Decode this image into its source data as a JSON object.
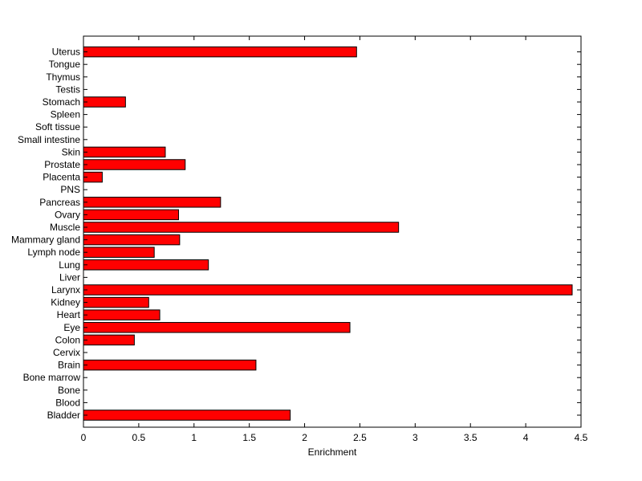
{
  "chart_data": {
    "type": "bar",
    "orientation": "horizontal",
    "title": "",
    "xlabel": "Enrichment",
    "ylabel": "",
    "xlim": [
      0,
      4.5
    ],
    "x_ticks": [
      "0",
      "0.5",
      "1",
      "1.5",
      "2",
      "2.5",
      "3",
      "3.5",
      "4",
      "4.5"
    ],
    "grid": false,
    "bar_color": "#ff0000",
    "categories": [
      "Bladder",
      "Blood",
      "Bone",
      "Bone marrow",
      "Brain",
      "Cervix",
      "Colon",
      "Eye",
      "Heart",
      "Kidney",
      "Larynx",
      "Liver",
      "Lung",
      "Lymph node",
      "Mammary gland",
      "Muscle",
      "Ovary",
      "Pancreas",
      "PNS",
      "Placenta",
      "Prostate",
      "Skin",
      "Small intestine",
      "Soft tissue",
      "Spleen",
      "Stomach",
      "Testis",
      "Thymus",
      "Tongue",
      "Uterus"
    ],
    "values": [
      1.87,
      0,
      0,
      0,
      1.56,
      0,
      0.46,
      2.41,
      0.69,
      0.59,
      4.42,
      0,
      1.13,
      0.64,
      0.87,
      2.85,
      0.86,
      1.24,
      0,
      0.17,
      0.92,
      0.74,
      0,
      0,
      0,
      0.38,
      0,
      0,
      0,
      2.47
    ]
  }
}
